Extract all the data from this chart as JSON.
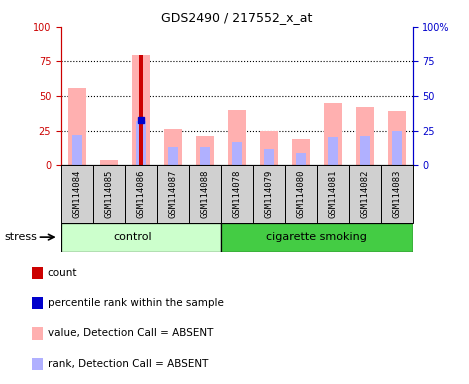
{
  "title": "GDS2490 / 217552_x_at",
  "samples": [
    "GSM114084",
    "GSM114085",
    "GSM114086",
    "GSM114087",
    "GSM114088",
    "GSM114078",
    "GSM114079",
    "GSM114080",
    "GSM114081",
    "GSM114082",
    "GSM114083"
  ],
  "n_control": 5,
  "n_smoking": 6,
  "value_absent": [
    56,
    4,
    80,
    26,
    21,
    40,
    25,
    19,
    45,
    42,
    39
  ],
  "rank_absent": [
    22,
    0,
    32,
    13,
    13,
    17,
    12,
    9,
    20,
    21,
    25
  ],
  "count": [
    0,
    0,
    80,
    0,
    0,
    0,
    0,
    0,
    0,
    0,
    0
  ],
  "percentile": [
    0,
    0,
    33,
    0,
    0,
    0,
    0,
    0,
    0,
    0,
    0
  ],
  "ylim": [
    0,
    100
  ],
  "grid_lines": [
    25,
    50,
    75
  ],
  "left_axis_color": "#cc0000",
  "right_axis_color": "#0000cc",
  "control_color": "#ccffcc",
  "smoking_color": "#44cc44",
  "sample_box_color": "#d0d0d0",
  "legend_items": [
    {
      "label": "count",
      "color": "#cc0000"
    },
    {
      "label": "percentile rank within the sample",
      "color": "#0000cc"
    },
    {
      "label": "value, Detection Call = ABSENT",
      "color": "#ffb0b0"
    },
    {
      "label": "rank, Detection Call = ABSENT",
      "color": "#b0b0ff"
    }
  ],
  "stress_label": "stress"
}
